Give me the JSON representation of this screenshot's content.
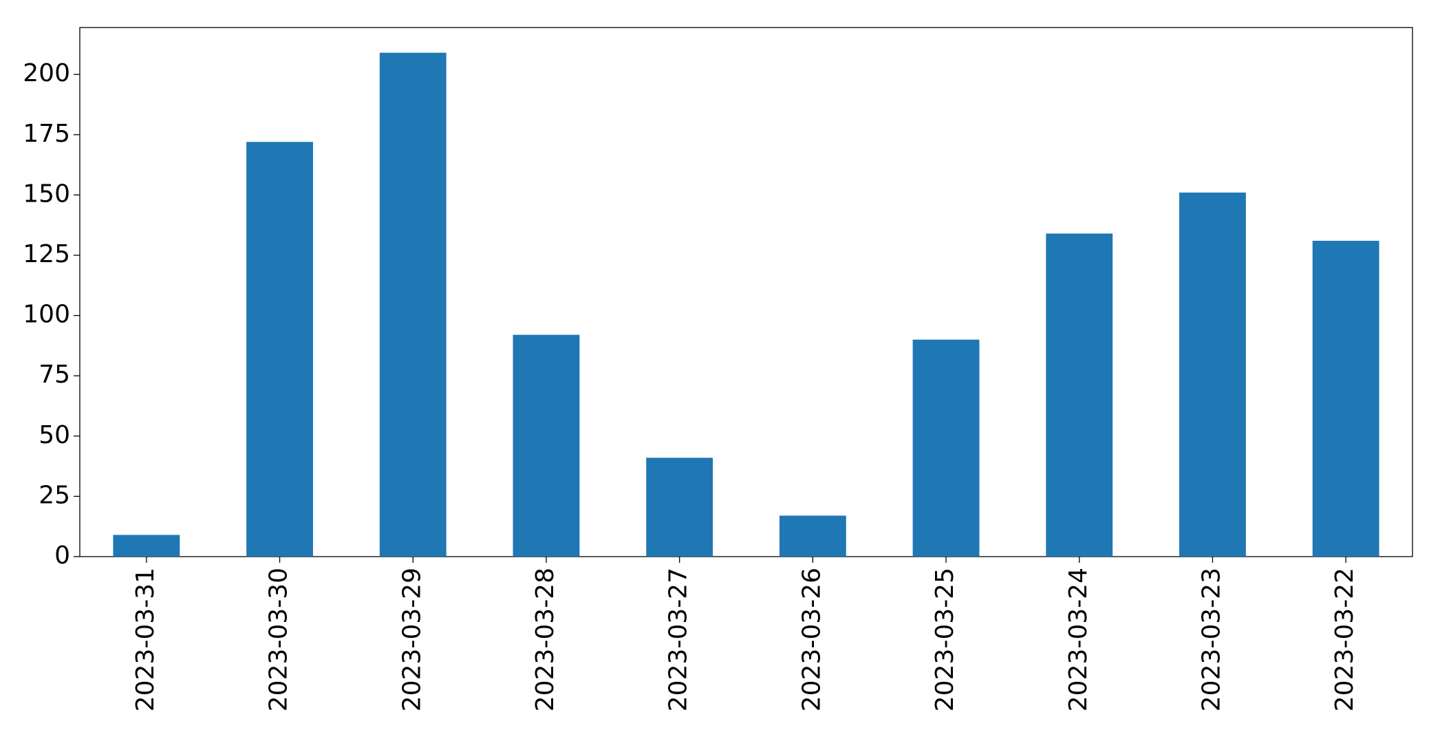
{
  "chart_data": {
    "type": "bar",
    "categories": [
      "2023-03-31",
      "2023-03-30",
      "2023-03-29",
      "2023-03-28",
      "2023-03-27",
      "2023-03-26",
      "2023-03-25",
      "2023-03-24",
      "2023-03-23",
      "2023-03-22"
    ],
    "values": [
      9,
      172,
      209,
      92,
      41,
      17,
      90,
      134,
      151,
      131
    ],
    "color": "#1f77b4",
    "ylim": [
      0,
      219.45
    ],
    "yticks": [
      0,
      25,
      50,
      75,
      100,
      125,
      150,
      175,
      200
    ],
    "grid": false
  }
}
